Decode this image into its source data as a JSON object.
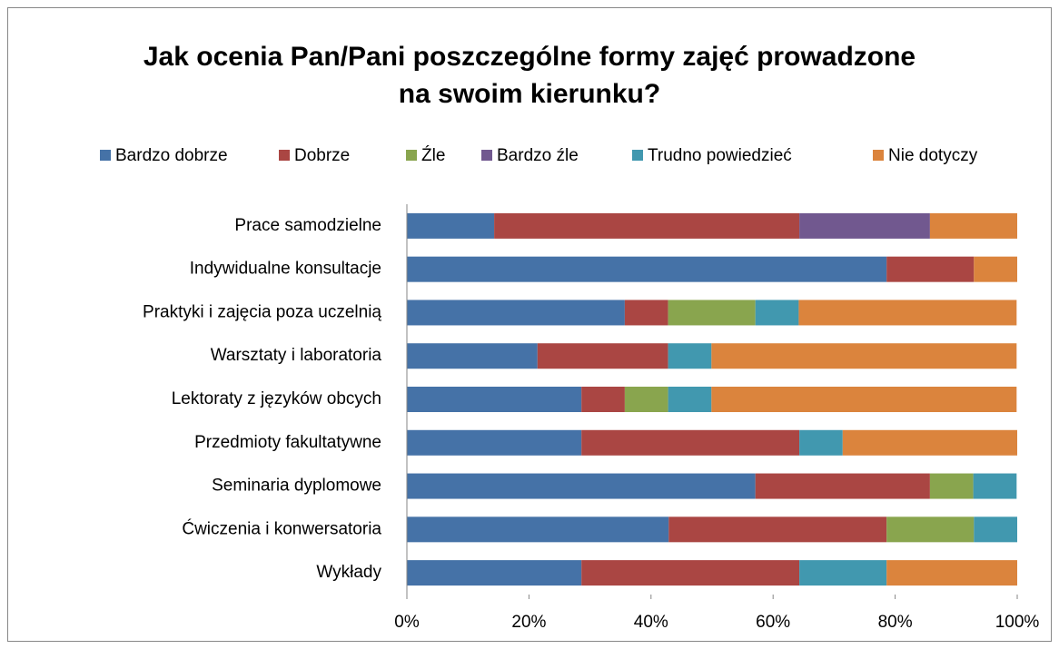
{
  "chart_data": {
    "type": "stacked-barh",
    "title": "Jak ocenia Pan/Pani poszczególne formy zajęć prowadzone na swoim kierunku?",
    "categories": [
      "Prace samodzielne",
      "Indywidualne konsultacje",
      "Praktyki i zajęcia poza uczelnią",
      "Warsztaty i laboratoria",
      "Lektoraty z języków obcych",
      "Przedmioty fakultatywne",
      "Seminaria dyplomowe",
      "Ćwiczenia i konwersatoria",
      "Wykłady"
    ],
    "series": [
      {
        "name": "Bardzo dobrze",
        "color": "#4572a7",
        "values": [
          14.3,
          78.6,
          35.7,
          21.4,
          28.6,
          28.6,
          57.1,
          42.9,
          28.6
        ]
      },
      {
        "name": "Dobrze",
        "color": "#aa4643",
        "values": [
          50.0,
          14.3,
          7.1,
          21.4,
          7.1,
          35.7,
          28.6,
          35.7,
          35.7
        ]
      },
      {
        "name": "Źle",
        "color": "#89a54e",
        "values": [
          0,
          0,
          14.3,
          0,
          7.1,
          0,
          7.1,
          14.3,
          0
        ]
      },
      {
        "name": "Bardzo źle",
        "color": "#71588f",
        "values": [
          21.4,
          0,
          0,
          0,
          0,
          0,
          0,
          0,
          0
        ]
      },
      {
        "name": "Trudno powiedzieć",
        "color": "#4198af",
        "values": [
          0,
          0,
          7.1,
          7.1,
          7.1,
          7.1,
          7.1,
          7.1,
          14.3
        ]
      },
      {
        "name": "Nie dotyczy",
        "color": "#db843d",
        "values": [
          14.3,
          7.1,
          35.7,
          50.0,
          50.0,
          28.6,
          0,
          0,
          21.4
        ]
      }
    ],
    "xlim": [
      0,
      100
    ],
    "xticks": [
      {
        "value": 0,
        "label": "0%"
      },
      {
        "value": 20,
        "label": "20%"
      },
      {
        "value": 40,
        "label": "40%"
      },
      {
        "value": 60,
        "label": "60%"
      },
      {
        "value": 80,
        "label": "80%"
      },
      {
        "value": 100,
        "label": "100%"
      }
    ],
    "legend": "top"
  }
}
